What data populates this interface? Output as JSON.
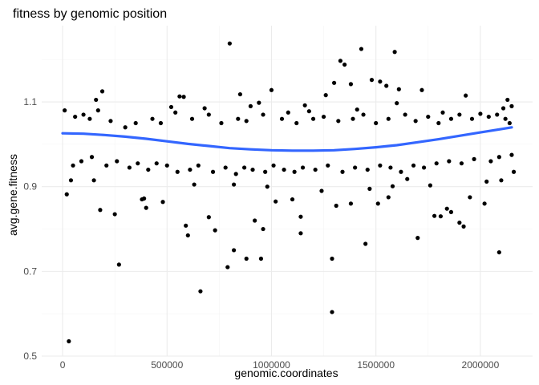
{
  "chart_data": {
    "type": "scatter",
    "title": "fitness by genomic position",
    "xlabel": "genomic.coordinates",
    "ylabel": "avg.gene.fitness",
    "xlim": [
      -100000,
      2250000
    ],
    "ylim": [
      0.5,
      1.28
    ],
    "x_ticks": [
      0,
      500000,
      1000000,
      1500000,
      2000000
    ],
    "x_tick_labels": [
      "0",
      "500000",
      "1000000",
      "1500000",
      "2000000"
    ],
    "y_ticks": [
      0.5,
      0.7,
      0.9,
      1.1
    ],
    "y_tick_labels": [
      "0.5",
      "0.7",
      "0.9",
      "1.1"
    ],
    "grid": true,
    "legend": "none",
    "point_color": "#000000",
    "trend_color": "#3366ff",
    "trend_line": {
      "x": [
        0,
        100000,
        200000,
        300000,
        400000,
        500000,
        600000,
        700000,
        800000,
        900000,
        1000000,
        1100000,
        1200000,
        1300000,
        1400000,
        1500000,
        1600000,
        1700000,
        1800000,
        1900000,
        2000000,
        2100000,
        2150000
      ],
      "y": [
        1.026,
        1.025,
        1.022,
        1.018,
        1.013,
        1.007,
        1.001,
        0.996,
        0.991,
        0.988,
        0.986,
        0.985,
        0.985,
        0.986,
        0.989,
        0.993,
        0.998,
        1.005,
        1.012,
        1.02,
        1.028,
        1.036,
        1.04
      ]
    },
    "series": [
      {
        "points": [
          [
            30000,
            0.535
          ],
          [
            1290000,
            0.604
          ],
          [
            660000,
            0.653
          ],
          [
            270000,
            0.716
          ],
          [
            790000,
            0.71
          ],
          [
            1290000,
            0.73
          ],
          [
            880000,
            0.73
          ],
          [
            950000,
            0.73
          ],
          [
            820000,
            0.75
          ],
          [
            1450000,
            0.765
          ],
          [
            1700000,
            0.779
          ],
          [
            2090000,
            0.745
          ],
          [
            1140000,
            0.79
          ],
          [
            600000,
            0.785
          ],
          [
            730000,
            0.797
          ],
          [
            960000,
            0.8
          ],
          [
            1920000,
            0.806
          ],
          [
            590000,
            0.808
          ],
          [
            1900000,
            0.815
          ],
          [
            700000,
            0.828
          ],
          [
            920000,
            0.82
          ],
          [
            250000,
            0.835
          ],
          [
            1140000,
            0.829
          ],
          [
            1780000,
            0.831
          ],
          [
            1810000,
            0.83
          ],
          [
            1840000,
            0.848
          ],
          [
            180000,
            0.845
          ],
          [
            400000,
            0.85
          ],
          [
            390000,
            0.872
          ],
          [
            480000,
            0.864
          ],
          [
            1860000,
            0.84
          ],
          [
            1310000,
            0.855
          ],
          [
            1020000,
            0.865
          ],
          [
            1100000,
            0.87
          ],
          [
            1380000,
            0.86
          ],
          [
            1510000,
            0.86
          ],
          [
            2020000,
            0.86
          ],
          [
            1950000,
            0.875
          ],
          [
            1560000,
            0.875
          ],
          [
            1240000,
            0.89
          ],
          [
            380000,
            0.87
          ],
          [
            630000,
            0.905
          ],
          [
            20000,
            0.882
          ],
          [
            40000,
            0.915
          ],
          [
            150000,
            0.915
          ],
          [
            820000,
            0.905
          ],
          [
            980000,
            0.9
          ],
          [
            1470000,
            0.895
          ],
          [
            1580000,
            0.901
          ],
          [
            1650000,
            0.918
          ],
          [
            1760000,
            0.903
          ],
          [
            2030000,
            0.912
          ],
          [
            2100000,
            0.915
          ],
          [
            2160000,
            0.935
          ],
          [
            800000,
            1.238
          ],
          [
            1430000,
            1.225
          ],
          [
            1590000,
            1.218
          ],
          [
            1330000,
            1.197
          ],
          [
            1350000,
            1.188
          ],
          [
            1480000,
            1.152
          ],
          [
            1520000,
            1.148
          ],
          [
            1300000,
            1.145
          ],
          [
            1380000,
            1.142
          ],
          [
            1550000,
            1.138
          ],
          [
            1000000,
            1.128
          ],
          [
            1610000,
            1.13
          ],
          [
            1720000,
            1.128
          ],
          [
            190000,
            1.125
          ],
          [
            560000,
            1.113
          ],
          [
            580000,
            1.112
          ],
          [
            160000,
            1.105
          ],
          [
            1260000,
            1.116
          ],
          [
            850000,
            1.118
          ],
          [
            1930000,
            1.115
          ],
          [
            2130000,
            1.105
          ],
          [
            900000,
            1.09
          ],
          [
            940000,
            1.098
          ],
          [
            1160000,
            1.092
          ],
          [
            1410000,
            1.082
          ],
          [
            1600000,
            1.097
          ],
          [
            520000,
            1.088
          ],
          [
            680000,
            1.085
          ],
          [
            1180000,
            1.078
          ],
          [
            1820000,
            1.075
          ],
          [
            2000000,
            1.072
          ],
          [
            2110000,
            1.085
          ],
          [
            2150000,
            1.09
          ],
          [
            10000,
            1.08
          ],
          [
            60000,
            1.065
          ],
          [
            100000,
            1.07
          ],
          [
            130000,
            1.06
          ],
          [
            170000,
            1.08
          ],
          [
            230000,
            1.055
          ],
          [
            300000,
            1.04
          ],
          [
            350000,
            1.05
          ],
          [
            430000,
            1.06
          ],
          [
            470000,
            1.05
          ],
          [
            540000,
            1.075
          ],
          [
            620000,
            1.06
          ],
          [
            700000,
            1.07
          ],
          [
            760000,
            1.05
          ],
          [
            840000,
            1.06
          ],
          [
            880000,
            1.055
          ],
          [
            960000,
            1.07
          ],
          [
            1050000,
            1.06
          ],
          [
            1080000,
            1.075
          ],
          [
            1120000,
            1.05
          ],
          [
            1200000,
            1.06
          ],
          [
            1250000,
            1.065
          ],
          [
            1320000,
            1.055
          ],
          [
            1390000,
            1.06
          ],
          [
            1440000,
            1.07
          ],
          [
            1500000,
            1.05
          ],
          [
            1560000,
            1.06
          ],
          [
            1640000,
            1.07
          ],
          [
            1690000,
            1.055
          ],
          [
            1750000,
            1.065
          ],
          [
            1800000,
            1.05
          ],
          [
            1860000,
            1.06
          ],
          [
            1900000,
            1.07
          ],
          [
            1960000,
            1.06
          ],
          [
            2040000,
            1.065
          ],
          [
            2080000,
            1.07
          ],
          [
            2120000,
            1.06
          ],
          [
            2140000,
            1.05
          ],
          [
            50000,
            0.95
          ],
          [
            90000,
            0.96
          ],
          [
            140000,
            0.97
          ],
          [
            210000,
            0.95
          ],
          [
            260000,
            0.96
          ],
          [
            320000,
            0.945
          ],
          [
            360000,
            0.955
          ],
          [
            410000,
            0.94
          ],
          [
            450000,
            0.955
          ],
          [
            500000,
            0.95
          ],
          [
            550000,
            0.935
          ],
          [
            610000,
            0.94
          ],
          [
            650000,
            0.95
          ],
          [
            720000,
            0.935
          ],
          [
            780000,
            0.945
          ],
          [
            830000,
            0.93
          ],
          [
            870000,
            0.945
          ],
          [
            910000,
            0.94
          ],
          [
            970000,
            0.935
          ],
          [
            1010000,
            0.95
          ],
          [
            1060000,
            0.94
          ],
          [
            1110000,
            0.935
          ],
          [
            1150000,
            0.945
          ],
          [
            1210000,
            0.94
          ],
          [
            1270000,
            0.95
          ],
          [
            1340000,
            0.935
          ],
          [
            1400000,
            0.945
          ],
          [
            1460000,
            0.94
          ],
          [
            1520000,
            0.95
          ],
          [
            1570000,
            0.945
          ],
          [
            1620000,
            0.935
          ],
          [
            1680000,
            0.95
          ],
          [
            1730000,
            0.945
          ],
          [
            1790000,
            0.955
          ],
          [
            1850000,
            0.96
          ],
          [
            1910000,
            0.955
          ],
          [
            1970000,
            0.965
          ],
          [
            2050000,
            0.96
          ],
          [
            2090000,
            0.97
          ],
          [
            2150000,
            0.975
          ]
        ]
      }
    ]
  }
}
